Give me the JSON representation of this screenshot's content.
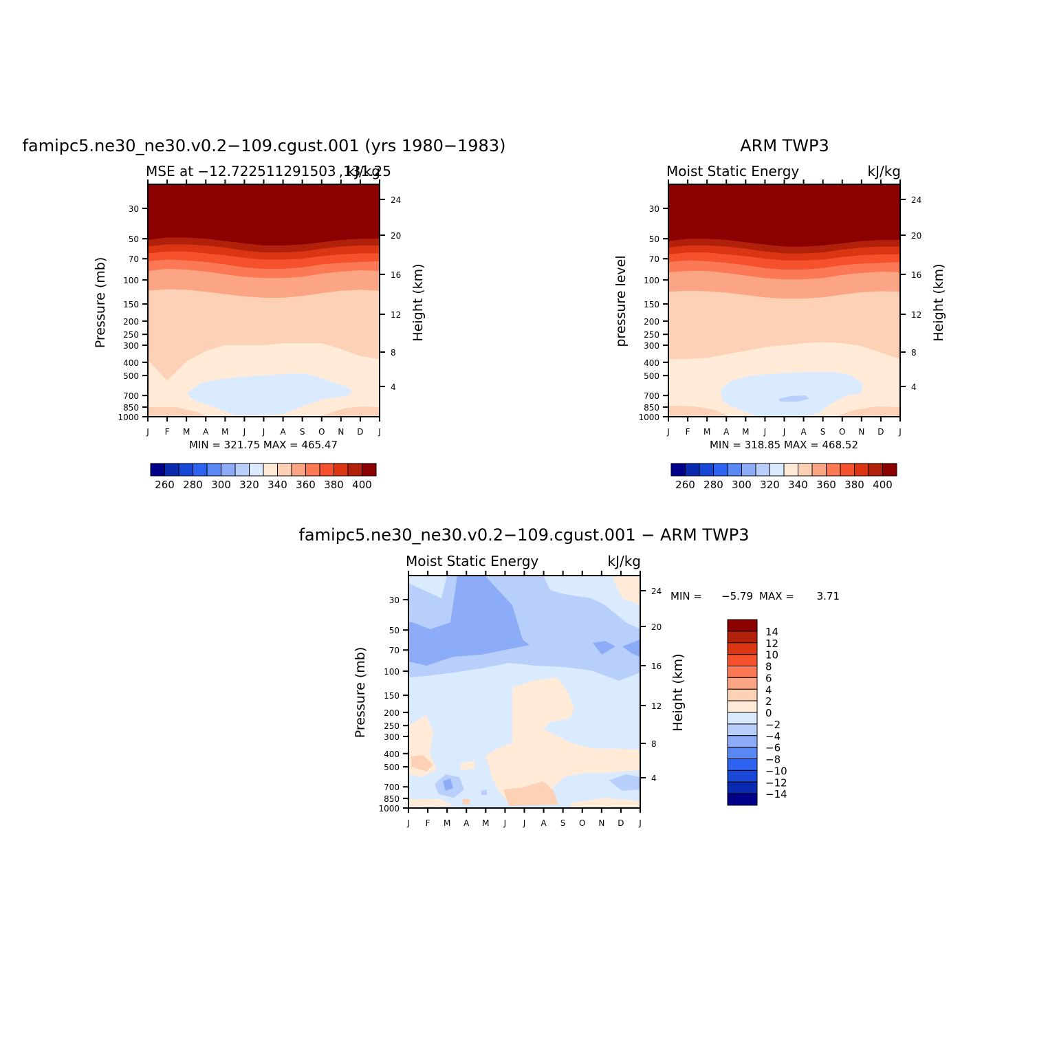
{
  "figure": {
    "panel_a_title": "famipc5.ne30_ne30.v0.2−109.cgust.001 (yrs 1980−1983)",
    "panel_a_left": "MSE at −12.722511291503 ,131.25",
    "panel_a_right": "kJ/kg",
    "panel_b_title": "ARM TWP3",
    "panel_b_left": "Moist Static Energy",
    "panel_b_right": "kJ/kg",
    "panel_c_title": "famipc5.ne30_ne30.v0.2−109.cgust.001 − ARM TWP3",
    "panel_c_left": "Moist Static Energy",
    "panel_c_right": "kJ/kg"
  },
  "colors": {
    "abs_levels": [
      "#00008b",
      "#0a2bb0",
      "#1a48d6",
      "#2e62f0",
      "#5a88f5",
      "#8cacf7",
      "#b7cffa",
      "#daeaff",
      "#ffebd8",
      "#fdd1b5",
      "#fca585",
      "#fb7a55",
      "#f5512c",
      "#dc3514",
      "#b0200a",
      "#8b0000"
    ],
    "diff_levels": [
      "#00008b",
      "#0a2bb0",
      "#1a48d6",
      "#2e62f0",
      "#5a88f5",
      "#8cacf7",
      "#b7cffa",
      "#daeaff",
      "#ffebd8",
      "#fdd1b5",
      "#fca585",
      "#fb7a55",
      "#f5512c",
      "#dc3514",
      "#b0200a",
      "#8b0000"
    ]
  },
  "chart_data": [
    {
      "type": "heatmap",
      "id": "model",
      "title": "famipc5.ne30_ne30.v0.2−109.cgust.001 (yrs 1980−1983)",
      "subtitle_left": "MSE at −12.722511291503 ,131.25",
      "subtitle_right": "kJ/kg",
      "ylabel": "Pressure (mb)",
      "ylabel_right": "Height (km)",
      "x_ticks": [
        "J",
        "F",
        "M",
        "A",
        "M",
        "J",
        "J",
        "A",
        "S",
        "O",
        "N",
        "D",
        "J"
      ],
      "y_ticks": [
        30,
        50,
        70,
        100,
        150,
        200,
        250,
        300,
        400,
        500,
        700,
        850,
        1000
      ],
      "y_right_ticks": [
        24,
        20,
        16,
        12,
        8,
        4
      ],
      "ylim": [
        1000,
        20
      ],
      "log_y": true,
      "min_label": "MIN = 321.75 MAX = 465.47",
      "min": 321.75,
      "max": 465.47,
      "field_thresholds_mb": [
        {
          "level_value": 400,
          "boundary_mb": [
            52,
            50,
            50,
            51,
            53,
            56,
            58,
            58,
            57,
            55,
            53,
            52,
            52
          ]
        },
        {
          "level_value": 390,
          "boundary_mb": [
            60,
            58,
            58,
            60,
            62,
            65,
            67,
            67,
            66,
            63,
            61,
            60,
            60
          ]
        },
        {
          "level_value": 380,
          "boundary_mb": [
            68,
            66,
            67,
            69,
            72,
            75,
            77,
            77,
            76,
            72,
            70,
            69,
            68
          ]
        },
        {
          "level_value": 370,
          "boundary_mb": [
            80,
            78,
            79,
            82,
            85,
            88,
            90,
            90,
            88,
            84,
            82,
            80,
            80
          ]
        },
        {
          "level_value": 360,
          "boundary_mb": [
            95,
            92,
            94,
            98,
            102,
            106,
            109,
            109,
            106,
            100,
            97,
            95,
            95
          ]
        },
        {
          "level_value": 350,
          "boundary_mb": [
            120,
            115,
            118,
            122,
            127,
            132,
            135,
            135,
            131,
            125,
            120,
            118,
            120
          ]
        },
        {
          "level_value": 340,
          "boundary_mb": [
            380,
            540,
            390,
            330,
            300,
            300,
            300,
            290,
            290,
            290,
            320,
            360,
            380
          ]
        }
      ],
      "colorbar_labels": [
        "260",
        "280",
        "300",
        "320",
        "340",
        "360",
        "380",
        "400"
      ]
    },
    {
      "type": "heatmap",
      "id": "obs",
      "title": "ARM TWP3",
      "subtitle_left": "Moist Static Energy",
      "subtitle_right": "kJ/kg",
      "ylabel": "pressure level",
      "ylabel_right": "Height (km)",
      "x_ticks": [
        "J",
        "F",
        "M",
        "A",
        "M",
        "J",
        "J",
        "A",
        "S",
        "O",
        "N",
        "D",
        "J"
      ],
      "y_ticks": [
        30,
        50,
        70,
        100,
        150,
        200,
        250,
        300,
        400,
        500,
        700,
        850,
        1000
      ],
      "y_right_ticks": [
        24,
        20,
        16,
        12,
        8,
        4
      ],
      "ylim": [
        1000,
        20
      ],
      "log_y": true,
      "min_label": "MIN = 318.85 MAX = 468.52",
      "min": 318.85,
      "max": 468.52,
      "colorbar_labels": [
        "260",
        "280",
        "300",
        "320",
        "340",
        "360",
        "380",
        "400"
      ]
    },
    {
      "type": "heatmap",
      "id": "diff",
      "title": "famipc5.ne30_ne30.v0.2−109.cgust.001 − ARM TWP3",
      "subtitle_left": "Moist Static Energy",
      "subtitle_right": "kJ/kg",
      "ylabel": "Pressure (mb)",
      "ylabel_right": "Height (km)",
      "x_ticks": [
        "J",
        "F",
        "M",
        "A",
        "M",
        "J",
        "J",
        "A",
        "S",
        "O",
        "N",
        "D",
        "J"
      ],
      "y_ticks": [
        30,
        50,
        70,
        100,
        150,
        200,
        250,
        300,
        400,
        500,
        700,
        850,
        1000
      ],
      "y_right_ticks": [
        24,
        20,
        16,
        12,
        8,
        4
      ],
      "ylim": [
        1000,
        20
      ],
      "log_y": true,
      "min_text": "MIN =",
      "min_value": "−5.79",
      "max_text": "MAX =",
      "max_value": "3.71",
      "colorbar_labels": [
        "14",
        "12",
        "10",
        "8",
        "6",
        "4",
        "2",
        "0",
        "−2",
        "−4",
        "−6",
        "−8",
        "−10",
        "−12",
        "−14"
      ]
    }
  ]
}
